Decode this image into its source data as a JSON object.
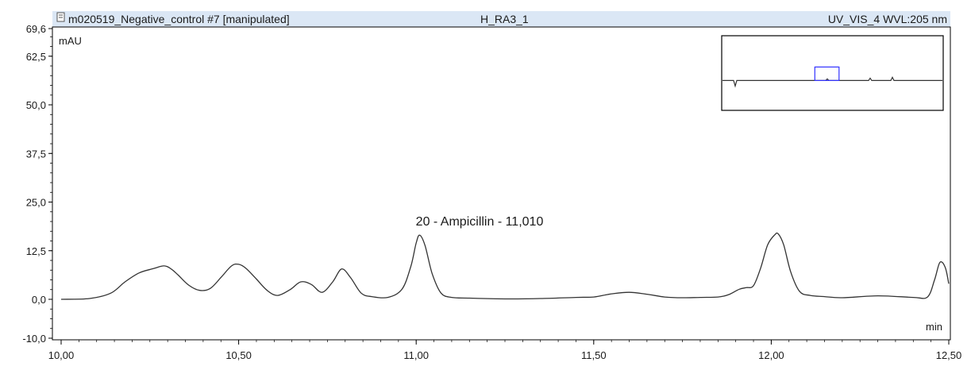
{
  "header": {
    "file_icon": "document-icon",
    "sample_name": "m020519_Negative_control #7 [manipulated]",
    "injection": "H_RA3_1",
    "channel": "UV_VIS_4 WVL:205 nm"
  },
  "colors": {
    "background": "#ffffff",
    "header_bar": "#dbe7f5",
    "trace": "#333333",
    "axes": "#000000",
    "inset_zoom_box": "#3333ff"
  },
  "chart_data": {
    "type": "line",
    "ylabel": "mAU",
    "xlabel": "min",
    "xlim": [
      10.0,
      12.5
    ],
    "ylim": [
      -10.0,
      69.6
    ],
    "x_ticks": [
      "10,00",
      "10,50",
      "11,00",
      "11,50",
      "12,00",
      "12,50"
    ],
    "x_tick_values": [
      10.0,
      10.5,
      11.0,
      11.5,
      12.0,
      12.5
    ],
    "y_ticks": [
      "-10,0",
      "0,0",
      "12,5",
      "25,0",
      "37,5",
      "50,0",
      "62,5",
      "69,6"
    ],
    "y_tick_values": [
      -10.0,
      0.0,
      12.5,
      25.0,
      37.5,
      50.0,
      62.5,
      69.6
    ],
    "grid": false,
    "series": [
      {
        "x": [
          10.0,
          10.08,
          10.14,
          10.18,
          10.22,
          10.26,
          10.29,
          10.31,
          10.33,
          10.36,
          10.39,
          10.42,
          10.45,
          10.48,
          10.5,
          10.52,
          10.55,
          10.58,
          10.61,
          10.645,
          10.675,
          10.705,
          10.735,
          10.765,
          10.79,
          10.815,
          10.845,
          10.875,
          10.92,
          10.96,
          10.985,
          11.0,
          11.01,
          11.025,
          11.045,
          11.07,
          11.1,
          11.15,
          11.25,
          11.35,
          11.45,
          11.5,
          11.55,
          11.6,
          11.65,
          11.7,
          11.75,
          11.8,
          11.85,
          11.88,
          11.91,
          11.93,
          11.95,
          11.97,
          11.99,
          12.01,
          12.02,
          12.035,
          12.055,
          12.08,
          12.11,
          12.15,
          12.2,
          12.3,
          12.4,
          12.44,
          12.46,
          12.475,
          12.49,
          12.5
        ],
        "y": [
          0.0,
          0.2,
          1.6,
          4.5,
          6.8,
          7.9,
          8.6,
          7.8,
          6.2,
          3.6,
          2.3,
          2.8,
          5.6,
          8.6,
          9.0,
          8.0,
          5.2,
          2.3,
          1.0,
          2.5,
          4.5,
          3.8,
          1.8,
          4.5,
          7.8,
          5.6,
          1.6,
          0.7,
          0.5,
          2.6,
          8.5,
          14.5,
          16.5,
          13.8,
          6.6,
          1.6,
          0.5,
          0.3,
          0.1,
          0.2,
          0.5,
          0.6,
          1.4,
          1.8,
          1.3,
          0.6,
          0.4,
          0.5,
          0.6,
          1.2,
          2.6,
          3.0,
          3.5,
          8.0,
          14.0,
          16.6,
          16.8,
          14.0,
          7.0,
          2.0,
          1.0,
          0.7,
          0.4,
          0.9,
          0.5,
          0.6,
          5.0,
          9.5,
          8.2,
          4.0
        ]
      }
    ],
    "peak_annotations": [
      {
        "x": 11.01,
        "y": 16.5,
        "label": "20 - Ampicillin - 11,010"
      }
    ],
    "inset": {
      "description_kind": "overview",
      "zoom_box_x_fraction": [
        0.42,
        0.53
      ],
      "trace_baseline_fraction": 0.6
    }
  }
}
